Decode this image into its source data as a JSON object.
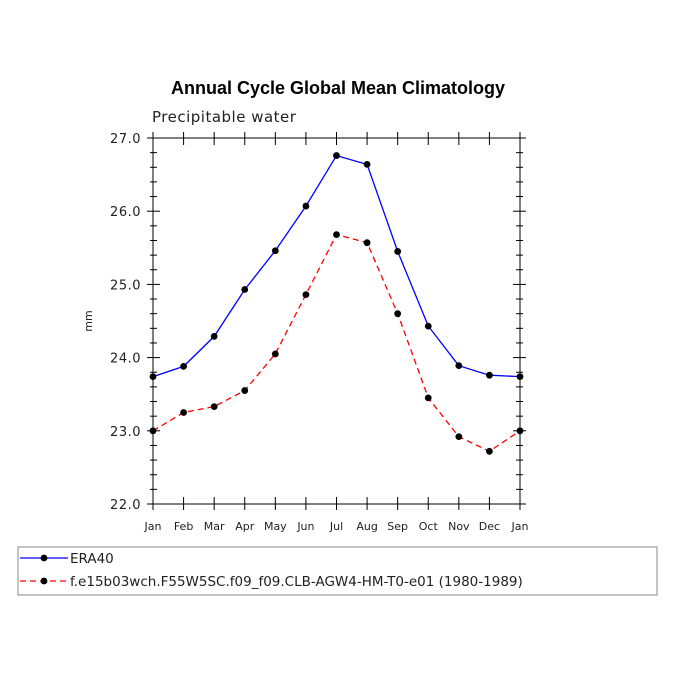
{
  "chart_data": {
    "type": "line",
    "title": "Annual Cycle Global Mean Climatology",
    "subtitle": "Precipitable water",
    "xlabel": "",
    "ylabel": "mm",
    "categories": [
      "Jan",
      "Feb",
      "Mar",
      "Apr",
      "May",
      "Jun",
      "Jul",
      "Aug",
      "Sep",
      "Oct",
      "Nov",
      "Dec",
      "Jan"
    ],
    "ylim": [
      22.0,
      27.0
    ],
    "yticks": [
      "22.0",
      "23.0",
      "24.0",
      "25.0",
      "26.0",
      "27.0"
    ],
    "grid": false,
    "legend_position": "bottom",
    "series": [
      {
        "name": "ERA40",
        "color": "#0000ff",
        "dash": "solid",
        "values": [
          23.74,
          23.88,
          24.29,
          24.93,
          25.46,
          26.07,
          26.76,
          26.64,
          25.45,
          24.43,
          23.89,
          23.76,
          23.74
        ]
      },
      {
        "name": "f.e15b03wch.F55W5SC.f09_f09.CLB-AGW4-HM-T0-e01 (1980-1989)",
        "color": "#ff0000",
        "dash": "dashed",
        "values": [
          23.0,
          23.25,
          23.33,
          23.55,
          24.05,
          24.86,
          25.68,
          25.57,
          24.6,
          23.45,
          22.92,
          22.72,
          23.0
        ]
      }
    ]
  }
}
